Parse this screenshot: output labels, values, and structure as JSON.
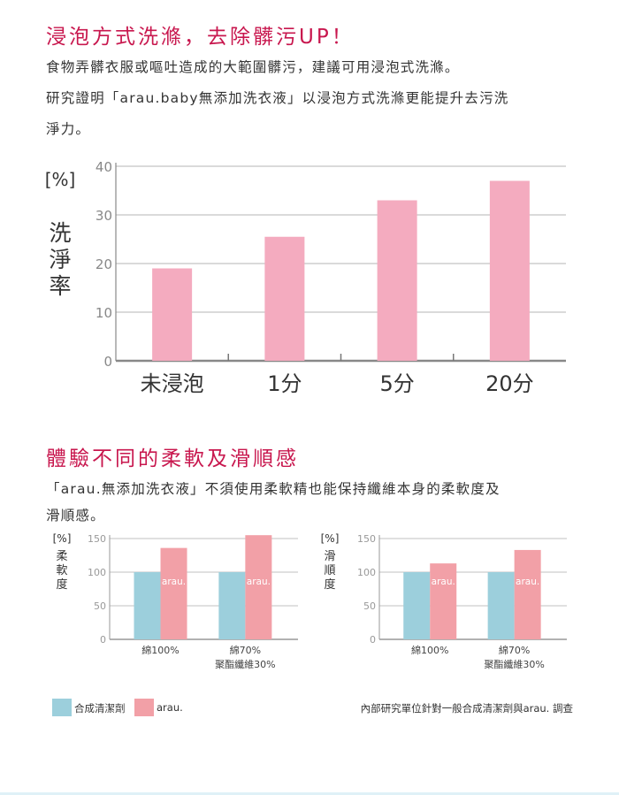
{
  "section1": {
    "title": "浸泡方式洗滌，去除髒污UP！",
    "lines": [
      "食物弄髒衣服或嘔吐造成的大範圍髒污，建議可用浸泡式洗滌。",
      "研究證明「arau.baby無添加洗衣液」以浸泡方式洗滌更能提升去污洗",
      "淨力。"
    ]
  },
  "section2": {
    "title": "體驗不同的柔軟及滑順感",
    "lines": [
      "「arau.無添加洗衣液」不須使用柔軟精也能保持纖維本身的柔軟度及",
      "滑順感。"
    ]
  },
  "legend": {
    "items": [
      {
        "label": "合成清潔劑",
        "color": "#9ccfdc"
      },
      {
        "label": "arau.",
        "color": "#f2a0a7"
      }
    ],
    "footnote": "內部研究單位針對一般合成清潔劑與arau. 調查"
  },
  "colors": {
    "heading": "#c8174e",
    "main_bar": "#f4abbf",
    "synthetic": "#9ccfdc",
    "arau": "#f2a0a7",
    "grid": "#9a9a9a"
  },
  "chart_data": [
    {
      "type": "bar",
      "unit_label": "[%]",
      "ylabel": "洗淨率",
      "ylim": [
        0,
        40
      ],
      "ticks": [
        "0",
        "10",
        "20",
        "30",
        "40"
      ],
      "categories": [
        "未浸泡",
        "1分",
        "5分",
        "20分"
      ],
      "values": [
        19,
        25.5,
        33,
        37
      ],
      "grid": true
    },
    {
      "type": "bar",
      "unit_label": "[%]",
      "ylabel": "柔軟度",
      "ylim": [
        0,
        150
      ],
      "ticks": [
        "0",
        "50",
        "100",
        "150"
      ],
      "categories": [
        "綿100%",
        "綿70%\n聚酯纖維30%"
      ],
      "series": [
        {
          "name": "合成清潔劑",
          "values": [
            100,
            100
          ]
        },
        {
          "name": "arau.",
          "values": [
            136,
            155
          ]
        }
      ],
      "bar_label": "arau.",
      "grid": true
    },
    {
      "type": "bar",
      "unit_label": "[%]",
      "ylabel": "滑順度",
      "ylim": [
        0,
        150
      ],
      "ticks": [
        "0",
        "50",
        "100",
        "150"
      ],
      "categories": [
        "綿100%",
        "綿70%\n聚酯纖維30%"
      ],
      "series": [
        {
          "name": "合成清潔劑",
          "values": [
            100,
            100
          ]
        },
        {
          "name": "arau.",
          "values": [
            113,
            133
          ]
        }
      ],
      "bar_label": "arau.",
      "grid": true
    }
  ]
}
